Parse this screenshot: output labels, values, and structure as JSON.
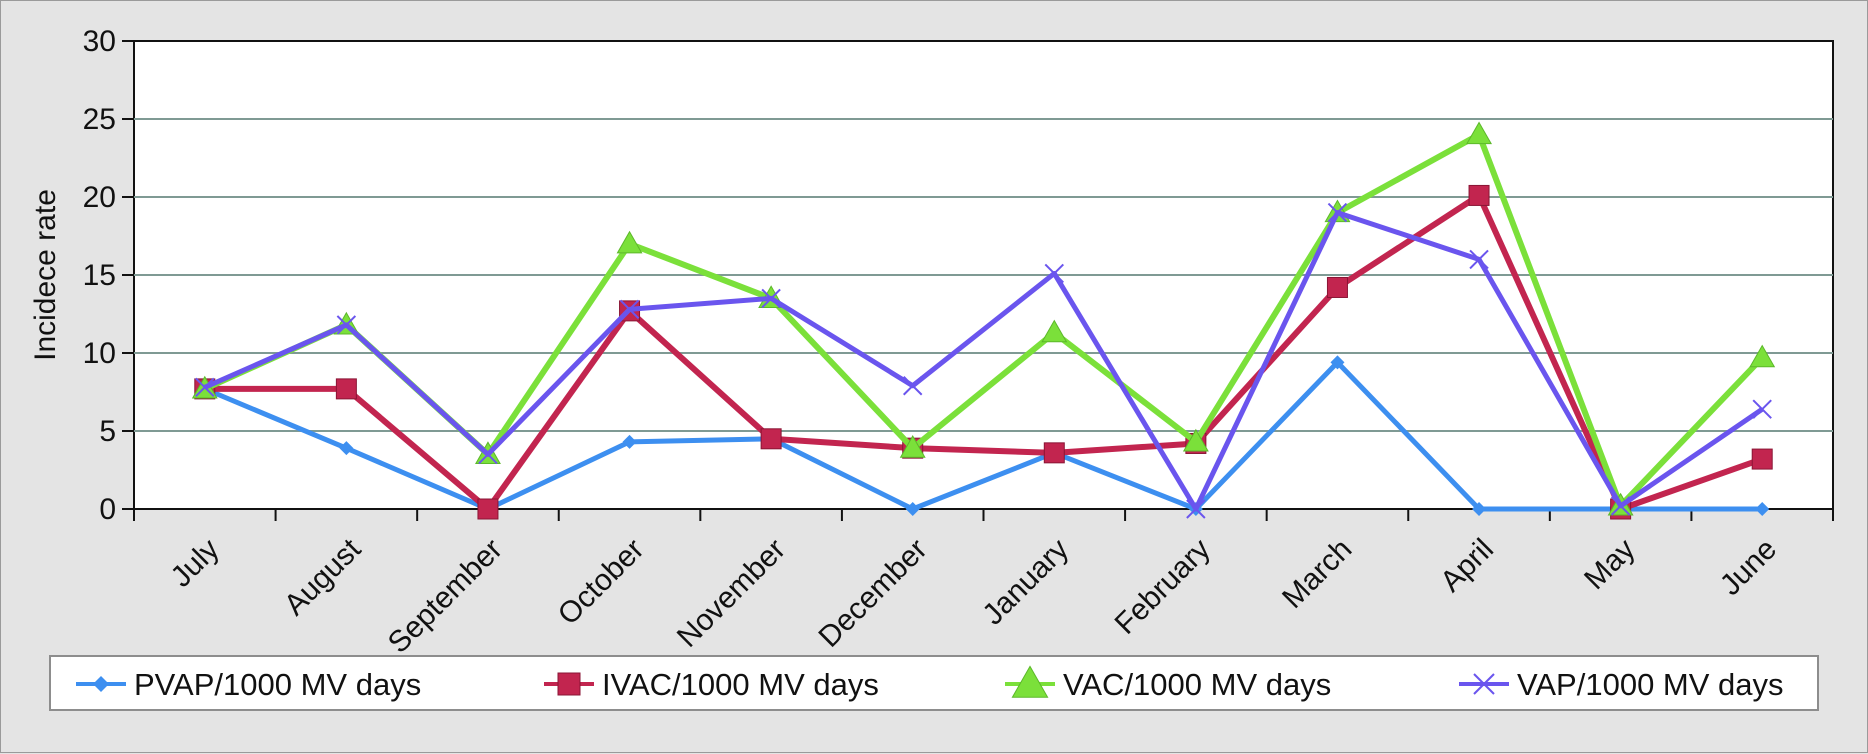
{
  "chart_data": {
    "type": "line",
    "title": "",
    "xlabel": "",
    "ylabel": "Incidece rate",
    "ylim": [
      0,
      30
    ],
    "yticks": [
      0,
      5,
      10,
      15,
      20,
      25,
      30
    ],
    "grid": true,
    "legend_position": "bottom",
    "categories": [
      "July",
      "August",
      "September",
      "October",
      "November",
      "December",
      "January",
      "February",
      "March",
      "April",
      "May",
      "June"
    ],
    "series": [
      {
        "name": "PVAP/1000 MV days",
        "color": "#3d8ff0",
        "marker": "diamond",
        "values": [
          7.7,
          3.9,
          0,
          4.3,
          4.5,
          0,
          3.6,
          0,
          9.4,
          0,
          0,
          0
        ]
      },
      {
        "name": "IVAC/1000 MV days",
        "color": "#c2254f",
        "marker": "square",
        "values": [
          7.7,
          7.7,
          0,
          12.7,
          4.5,
          3.9,
          3.6,
          4.2,
          14.2,
          20.1,
          0,
          3.2
        ]
      },
      {
        "name": "VAC/1000 MV days",
        "color": "#7be03a",
        "marker": "triangle",
        "values": [
          7.7,
          11.8,
          3.5,
          17.0,
          13.5,
          3.9,
          11.3,
          4.3,
          19.0,
          24.0,
          0.2,
          9.7
        ]
      },
      {
        "name": "VAP/1000 MV days",
        "color": "#6a55ee",
        "marker": "x",
        "values": [
          7.8,
          11.8,
          3.5,
          12.8,
          13.5,
          7.9,
          15.1,
          0,
          19.0,
          16.0,
          0.2,
          6.4
        ]
      }
    ]
  }
}
